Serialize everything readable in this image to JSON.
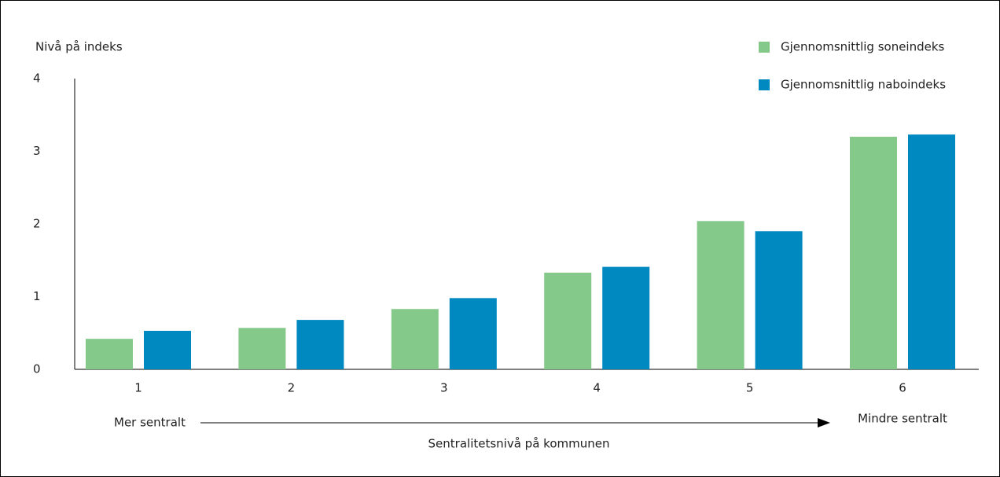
{
  "chart_data": {
    "type": "bar",
    "y_label": "Nivå på indeks",
    "x_label": "Sentralitetsnivå på kommunen",
    "annotations": [
      "Mer sentralt",
      "Mindre sentralt"
    ],
    "categories": [
      "1",
      "2",
      "3",
      "4",
      "5",
      "6"
    ],
    "series": [
      {
        "name": "Gjennomsnittlig soneindeks",
        "color": "#85c98a",
        "values": [
          0.42,
          0.57,
          0.83,
          1.33,
          2.04,
          3.2
        ]
      },
      {
        "name": "Gjennomsnittlig naboindeks",
        "color": "#0088c0",
        "values": [
          0.53,
          0.68,
          0.98,
          1.41,
          1.9,
          3.23
        ]
      }
    ],
    "ylim": [
      0,
      4
    ],
    "yticks": [
      0,
      1,
      2,
      3,
      4
    ],
    "grid": false,
    "legend": "top-right"
  }
}
